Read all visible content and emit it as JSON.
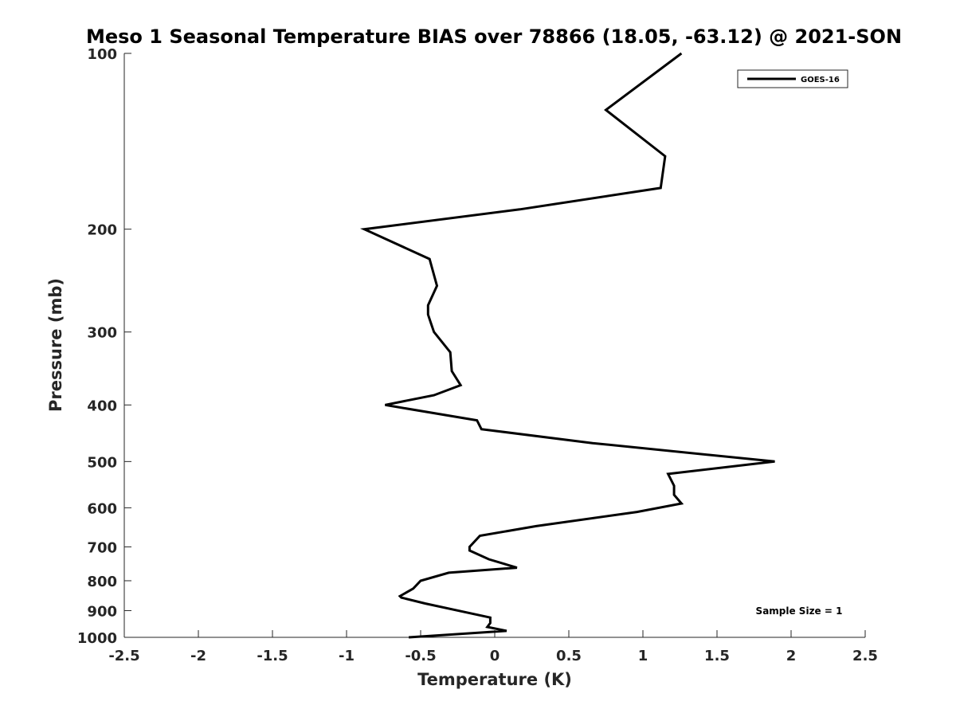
{
  "chart_data": {
    "type": "line",
    "title": "Meso 1 Seasonal Temperature BIAS over 78866 (18.05, -63.12) @ 2021-SON",
    "xlabel": "Temperature (K)",
    "ylabel": "Pressure (mb)",
    "xlim": [
      -2.5,
      2.5
    ],
    "ylim": [
      1000,
      100
    ],
    "y_scale": "log",
    "y_reversed": true,
    "grid": false,
    "legend_position": "top-right",
    "x_ticks": [
      -2.5,
      -2,
      -1.5,
      -1,
      -0.5,
      0,
      0.5,
      1,
      1.5,
      2,
      2.5
    ],
    "x_tick_labels": [
      "-2.5",
      "-2",
      "-1.5",
      "-1",
      "-0.5",
      "0",
      "0.5",
      "1",
      "1.5",
      "2",
      "2.5"
    ],
    "y_ticks": [
      100,
      200,
      300,
      400,
      500,
      600,
      700,
      800,
      900,
      1000
    ],
    "y_tick_labels": [
      "100",
      "200",
      "300",
      "400",
      "500",
      "600",
      "700",
      "800",
      "900",
      "1000"
    ],
    "annotation": "Sample Size = 1",
    "series": [
      {
        "name": "GOES-16",
        "color": "#000000",
        "points": [
          {
            "x": 1.26,
            "p": 100
          },
          {
            "x": 0.75,
            "p": 125
          },
          {
            "x": 1.15,
            "p": 150
          },
          {
            "x": 1.12,
            "p": 170
          },
          {
            "x": 0.17,
            "p": 185
          },
          {
            "x": -0.88,
            "p": 200
          },
          {
            "x": -0.44,
            "p": 225
          },
          {
            "x": -0.39,
            "p": 250
          },
          {
            "x": -0.45,
            "p": 270
          },
          {
            "x": -0.45,
            "p": 280
          },
          {
            "x": -0.43,
            "p": 290
          },
          {
            "x": -0.41,
            "p": 300
          },
          {
            "x": -0.3,
            "p": 325
          },
          {
            "x": -0.29,
            "p": 350
          },
          {
            "x": -0.23,
            "p": 370
          },
          {
            "x": -0.41,
            "p": 385
          },
          {
            "x": -0.74,
            "p": 400
          },
          {
            "x": -0.12,
            "p": 425
          },
          {
            "x": -0.09,
            "p": 440
          },
          {
            "x": 0.66,
            "p": 465
          },
          {
            "x": 1.89,
            "p": 500
          },
          {
            "x": 1.17,
            "p": 525
          },
          {
            "x": 1.21,
            "p": 550
          },
          {
            "x": 1.21,
            "p": 570
          },
          {
            "x": 1.26,
            "p": 590
          },
          {
            "x": 0.96,
            "p": 610
          },
          {
            "x": 0.28,
            "p": 645
          },
          {
            "x": -0.1,
            "p": 670
          },
          {
            "x": -0.17,
            "p": 700
          },
          {
            "x": -0.17,
            "p": 710
          },
          {
            "x": -0.04,
            "p": 735
          },
          {
            "x": 0.15,
            "p": 760
          },
          {
            "x": -0.31,
            "p": 775
          },
          {
            "x": -0.5,
            "p": 800
          },
          {
            "x": -0.55,
            "p": 825
          },
          {
            "x": -0.64,
            "p": 850
          },
          {
            "x": -0.63,
            "p": 855
          },
          {
            "x": -0.47,
            "p": 875
          },
          {
            "x": -0.03,
            "p": 925
          },
          {
            "x": -0.03,
            "p": 945
          },
          {
            "x": -0.05,
            "p": 960
          },
          {
            "x": 0.08,
            "p": 975
          },
          {
            "x": -0.58,
            "p": 1000
          }
        ]
      }
    ]
  }
}
